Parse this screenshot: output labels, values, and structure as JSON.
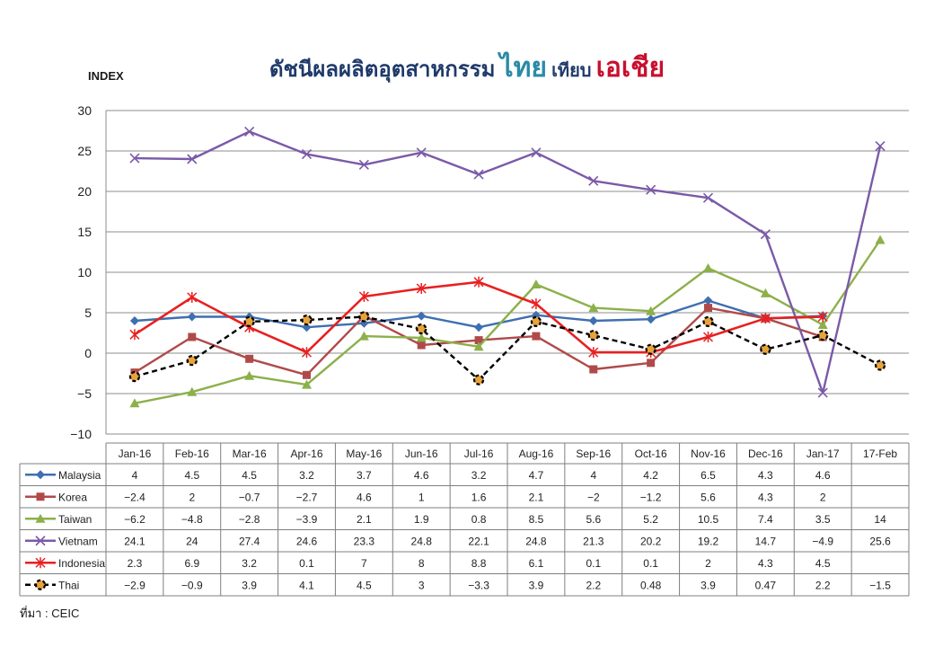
{
  "title": {
    "part1": "ดัชนีผลผลิตอุตสาหกรรม",
    "part2": "ไทย",
    "part3": "เทียบ",
    "part4": "เอเชีย"
  },
  "source": "ที่มา : CEIC",
  "colors": {
    "Malaysia": "#3e6fb0",
    "Korea": "#b04a4a",
    "Taiwan": "#8cb04a",
    "Vietnam": "#7a5aa8",
    "Indonesia": "#e82020",
    "Thai": "#000000"
  },
  "chart_data": {
    "type": "line",
    "ylabel": "INDEX",
    "ylim": [
      -10,
      30
    ],
    "yticks": [
      -10,
      -5,
      0,
      5,
      10,
      15,
      20,
      25,
      30
    ],
    "grid": true,
    "categories": [
      "Jan-16",
      "Feb-16",
      "Mar-16",
      "Apr-16",
      "May-16",
      "Jun-16",
      "Jul-16",
      "Aug-16",
      "Sep-16",
      "Oct-16",
      "Nov-16",
      "Dec-16",
      "Jan-17",
      "17-Feb"
    ],
    "series": [
      {
        "name": "Malaysia",
        "marker": "diamond",
        "values": [
          4,
          4.5,
          4.5,
          3.2,
          3.7,
          4.6,
          3.2,
          4.7,
          4,
          4.2,
          6.5,
          4.3,
          4.6,
          null
        ]
      },
      {
        "name": "Korea",
        "marker": "square",
        "values": [
          -2.4,
          2,
          -0.7,
          -2.7,
          4.6,
          1,
          1.6,
          2.1,
          -2,
          -1.2,
          5.6,
          4.3,
          2,
          null
        ]
      },
      {
        "name": "Taiwan",
        "marker": "triangle",
        "values": [
          -6.2,
          -4.8,
          -2.8,
          -3.9,
          2.1,
          1.9,
          0.8,
          8.5,
          5.6,
          5.2,
          10.5,
          7.4,
          3.5,
          14
        ]
      },
      {
        "name": "Vietnam",
        "marker": "x",
        "values": [
          24.1,
          24,
          27.4,
          24.6,
          23.3,
          24.8,
          22.1,
          24.8,
          21.3,
          20.2,
          19.2,
          14.7,
          -4.9,
          25.6
        ]
      },
      {
        "name": "Indonesia",
        "marker": "star",
        "values": [
          2.3,
          6.9,
          3.2,
          0.1,
          7,
          8,
          8.8,
          6.1,
          0.1,
          0.1,
          2,
          4.3,
          4.5,
          null
        ]
      },
      {
        "name": "Thai",
        "marker": "circle",
        "dashed": true,
        "values": [
          -2.9,
          -0.9,
          3.9,
          4.1,
          4.5,
          3,
          -3.3,
          3.9,
          2.2,
          0.48,
          3.9,
          0.47,
          2.2,
          -1.5
        ]
      }
    ]
  }
}
